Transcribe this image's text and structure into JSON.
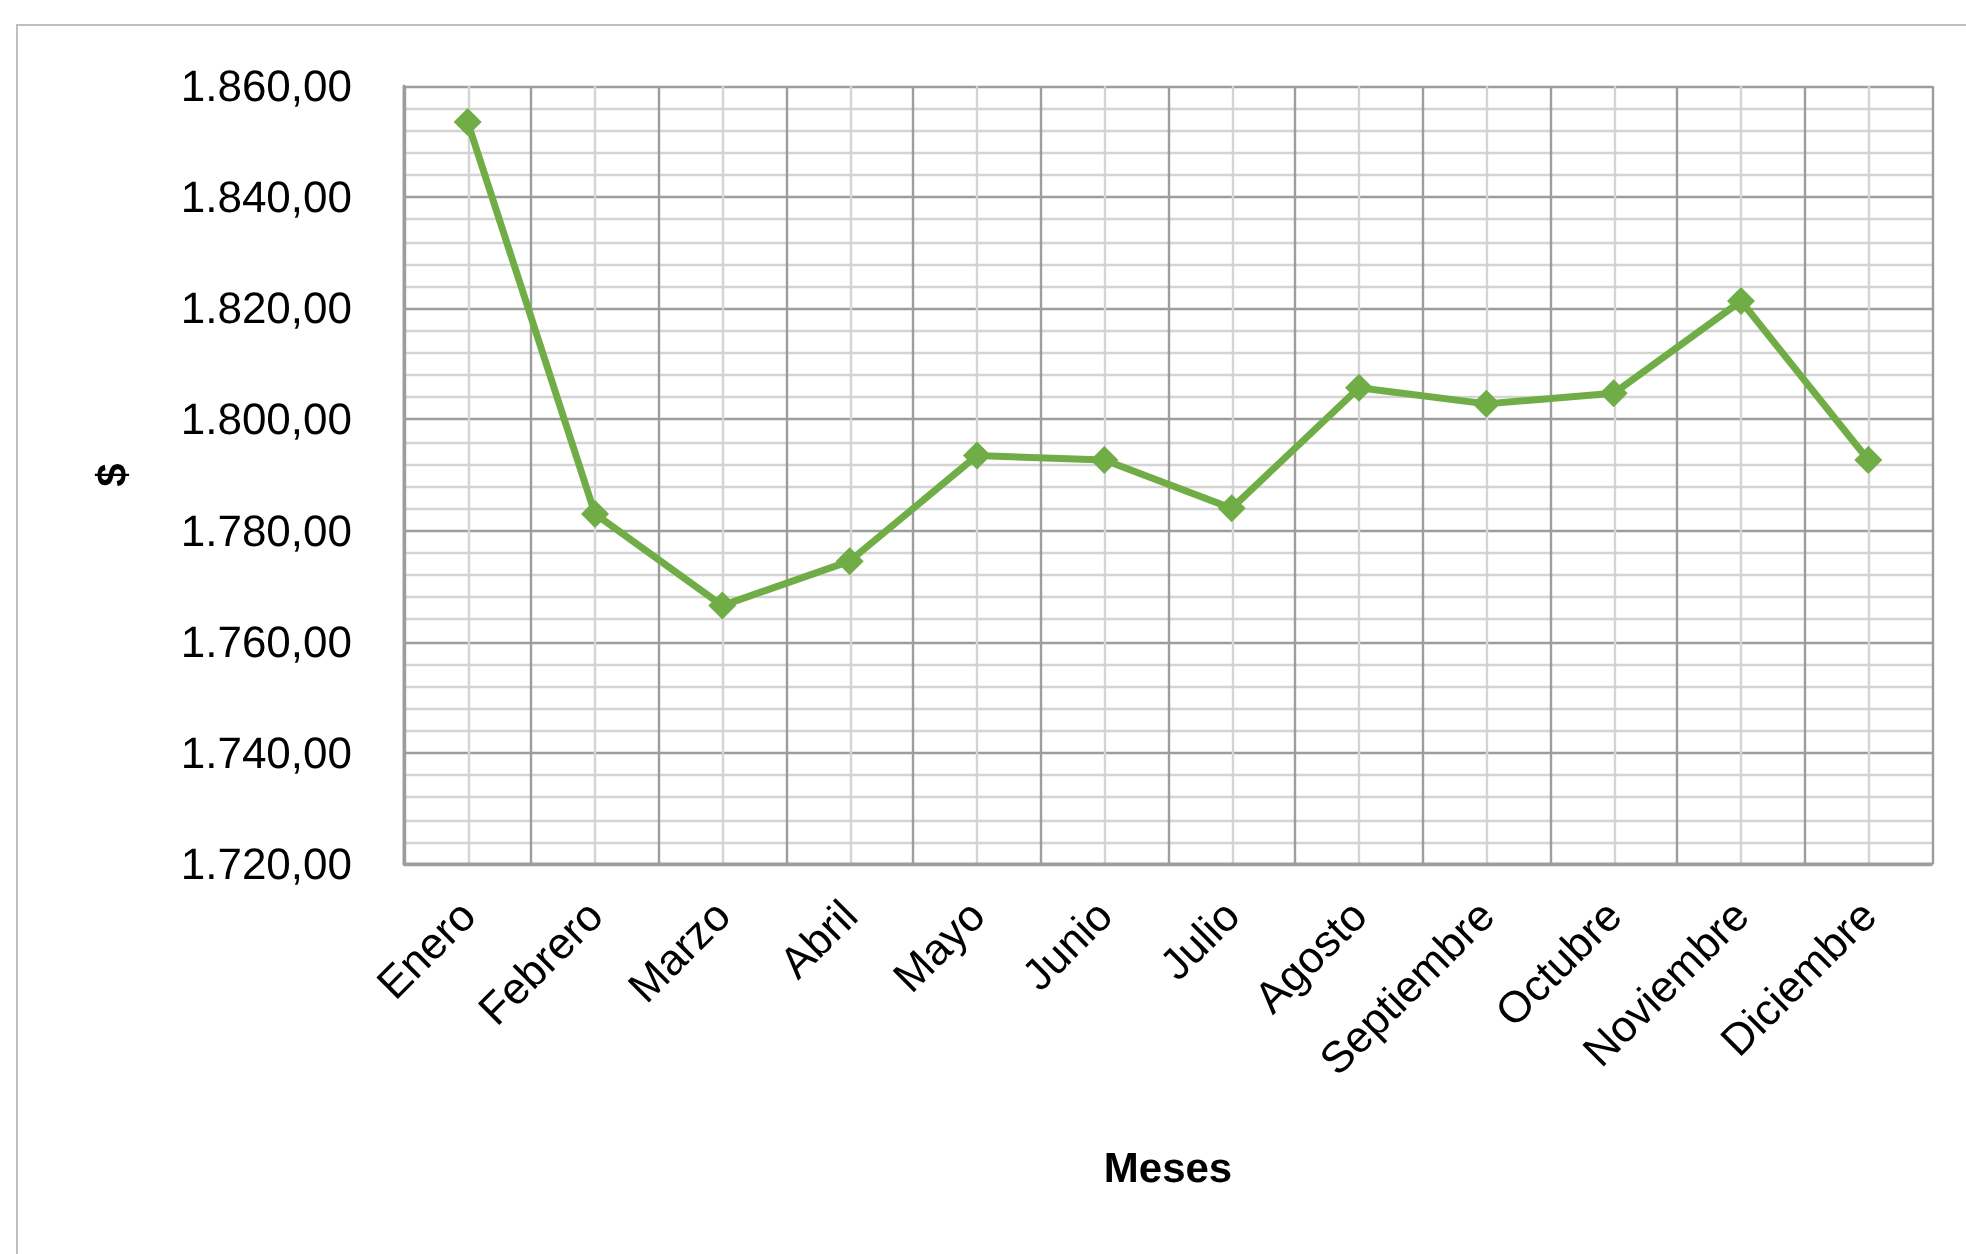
{
  "chart_data": {
    "type": "line",
    "xlabel": "Meses",
    "ylabel": "$",
    "categories": [
      "Enero",
      "Febrero",
      "Marzo",
      "Abril",
      "Mayo",
      "Junio",
      "Julio",
      "Agosto",
      "Septiembre",
      "Octubre",
      "Noviembre",
      "Diciembre"
    ],
    "series": [
      {
        "color": "#70ad47",
        "values": [
          1853.5,
          1783,
          1766.5,
          1774.5,
          1793.5,
          1792.7,
          1784,
          1805.7,
          1802.8,
          1804.7,
          1821.3,
          1792.7
        ]
      }
    ],
    "ylim": [
      1720,
      1860
    ],
    "yticks": [
      {
        "value": 1720,
        "label": "1.720,00"
      },
      {
        "value": 1740,
        "label": "1.740,00"
      },
      {
        "value": 1760,
        "label": "1.760,00"
      },
      {
        "value": 1780,
        "label": "1.780,00"
      },
      {
        "value": 1800,
        "label": "1.800,00"
      },
      {
        "value": 1820,
        "label": "1.820,00"
      },
      {
        "value": 1840,
        "label": "1.840,00"
      },
      {
        "value": 1860,
        "label": "1.860,00"
      }
    ],
    "grid": true,
    "marker": "diamond",
    "line_style": "solid"
  }
}
